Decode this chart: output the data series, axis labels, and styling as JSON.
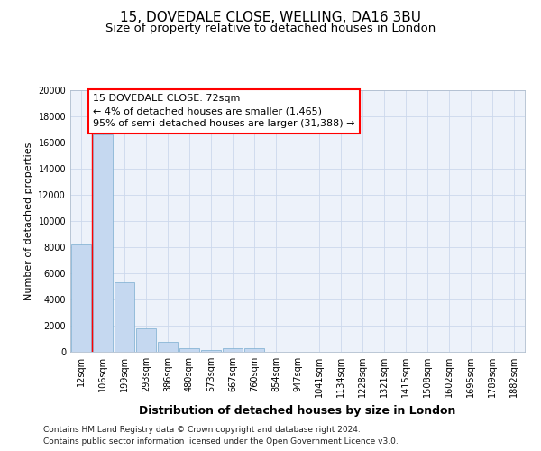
{
  "title": "15, DOVEDALE CLOSE, WELLING, DA16 3BU",
  "subtitle": "Size of property relative to detached houses in London",
  "xlabel": "Distribution of detached houses by size in London",
  "ylabel": "Number of detached properties",
  "categories": [
    "12sqm",
    "106sqm",
    "199sqm",
    "293sqm",
    "386sqm",
    "480sqm",
    "573sqm",
    "667sqm",
    "760sqm",
    "854sqm",
    "947sqm",
    "1041sqm",
    "1134sqm",
    "1228sqm",
    "1321sqm",
    "1415sqm",
    "1508sqm",
    "1602sqm",
    "1695sqm",
    "1789sqm",
    "1882sqm"
  ],
  "values": [
    8200,
    16600,
    5300,
    1800,
    750,
    300,
    150,
    300,
    300,
    0,
    0,
    0,
    0,
    0,
    0,
    0,
    0,
    0,
    0,
    0,
    0
  ],
  "bar_color": "#c5d8f0",
  "bar_edge_color": "#7aadcf",
  "annotation_box_text": "15 DOVEDALE CLOSE: 72sqm\n← 4% of detached houses are smaller (1,465)\n95% of semi-detached houses are larger (31,388) →",
  "annotation_box_color": "#ff0000",
  "red_line_x": 0.5,
  "ylim": [
    0,
    20000
  ],
  "yticks": [
    0,
    2000,
    4000,
    6000,
    8000,
    10000,
    12000,
    14000,
    16000,
    18000,
    20000
  ],
  "grid_color": "#ccd8ec",
  "bg_color": "#edf2fa",
  "footer_line1": "Contains HM Land Registry data © Crown copyright and database right 2024.",
  "footer_line2": "Contains public sector information licensed under the Open Government Licence v3.0.",
  "title_fontsize": 11,
  "subtitle_fontsize": 9.5,
  "xlabel_fontsize": 9,
  "ylabel_fontsize": 8,
  "tick_fontsize": 7,
  "annotation_fontsize": 8,
  "footer_fontsize": 6.5
}
